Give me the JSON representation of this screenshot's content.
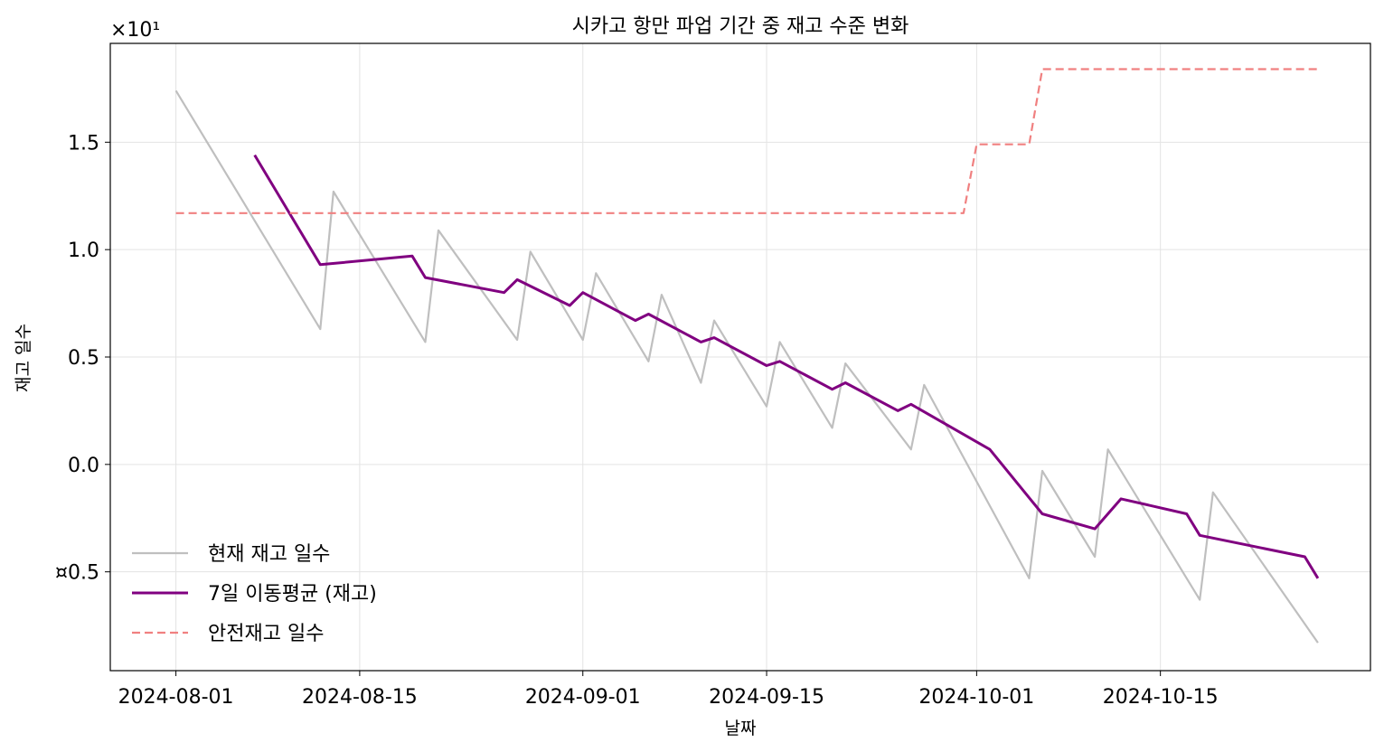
{
  "chart_data": {
    "type": "line",
    "title": "시카고 항만 파업 기간 중 재고 수준 변화",
    "xlabel": "날짜",
    "ylabel": "재고 일수",
    "y_offset_text": "×10¹",
    "x_tick_labels": [
      "2024-08-01",
      "2024-08-15",
      "2024-09-01",
      "2024-09-15",
      "2024-10-01",
      "2024-10-15"
    ],
    "x_tick_dates": [
      "2024-08-01",
      "2024-08-15",
      "2024-09-01",
      "2024-09-15",
      "2024-10-01",
      "2024-10-15"
    ],
    "y_tick_labels": [
      "¤0.5",
      "0.0",
      "0.5",
      "1.0",
      "1.5"
    ],
    "y_tick_values": [
      -0.5,
      0.0,
      0.5,
      1.0,
      1.5
    ],
    "xlim": [
      "2024-07-27",
      "2024-10-31"
    ],
    "ylim": [
      -0.96,
      1.96
    ],
    "grid": true,
    "legend_position": "lower-left",
    "series": [
      {
        "name": "현재 재고 일수",
        "color": "#bfbfbf",
        "style": "solid",
        "points": [
          [
            "2024-08-01",
            1.74
          ],
          [
            "2024-08-12",
            0.63
          ],
          [
            "2024-08-13",
            1.27
          ],
          [
            "2024-08-20",
            0.57
          ],
          [
            "2024-08-21",
            1.09
          ],
          [
            "2024-08-27",
            0.58
          ],
          [
            "2024-08-28",
            0.99
          ],
          [
            "2024-09-01",
            0.58
          ],
          [
            "2024-09-02",
            0.89
          ],
          [
            "2024-09-06",
            0.48
          ],
          [
            "2024-09-07",
            0.79
          ],
          [
            "2024-09-10",
            0.38
          ],
          [
            "2024-09-11",
            0.67
          ],
          [
            "2024-09-15",
            0.27
          ],
          [
            "2024-09-16",
            0.57
          ],
          [
            "2024-09-20",
            0.17
          ],
          [
            "2024-09-21",
            0.47
          ],
          [
            "2024-09-26",
            0.07
          ],
          [
            "2024-09-27",
            0.37
          ],
          [
            "2024-10-05",
            -0.53
          ],
          [
            "2024-10-06",
            -0.03
          ],
          [
            "2024-10-10",
            -0.43
          ],
          [
            "2024-10-11",
            0.07
          ],
          [
            "2024-10-18",
            -0.63
          ],
          [
            "2024-10-19",
            -0.13
          ],
          [
            "2024-10-27",
            -0.83
          ]
        ]
      },
      {
        "name": "7일 이동평균 (재고)",
        "color": "#800080",
        "style": "solid",
        "points": [
          [
            "2024-08-07",
            1.44
          ],
          [
            "2024-08-12",
            0.93
          ],
          [
            "2024-08-19",
            0.97
          ],
          [
            "2024-08-20",
            0.87
          ],
          [
            "2024-08-26",
            0.8
          ],
          [
            "2024-08-27",
            0.86
          ],
          [
            "2024-08-31",
            0.74
          ],
          [
            "2024-09-01",
            0.8
          ],
          [
            "2024-09-05",
            0.67
          ],
          [
            "2024-09-06",
            0.7
          ],
          [
            "2024-09-10",
            0.57
          ],
          [
            "2024-09-11",
            0.59
          ],
          [
            "2024-09-15",
            0.46
          ],
          [
            "2024-09-16",
            0.48
          ],
          [
            "2024-09-20",
            0.35
          ],
          [
            "2024-09-21",
            0.38
          ],
          [
            "2024-09-25",
            0.25
          ],
          [
            "2024-09-26",
            0.28
          ],
          [
            "2024-10-02",
            0.07
          ],
          [
            "2024-10-06",
            -0.23
          ],
          [
            "2024-10-10",
            -0.3
          ],
          [
            "2024-10-12",
            -0.16
          ],
          [
            "2024-10-17",
            -0.23
          ],
          [
            "2024-10-18",
            -0.33
          ],
          [
            "2024-10-26",
            -0.43
          ],
          [
            "2024-10-27",
            -0.53
          ]
        ]
      },
      {
        "name": "안전재고 일수",
        "color": "#f08080",
        "style": "dashed",
        "points": [
          [
            "2024-08-01",
            1.17
          ],
          [
            "2024-09-30",
            1.17
          ],
          [
            "2024-10-01",
            1.49
          ],
          [
            "2024-10-05",
            1.49
          ],
          [
            "2024-10-06",
            1.84
          ],
          [
            "2024-10-27",
            1.84
          ]
        ]
      }
    ]
  }
}
